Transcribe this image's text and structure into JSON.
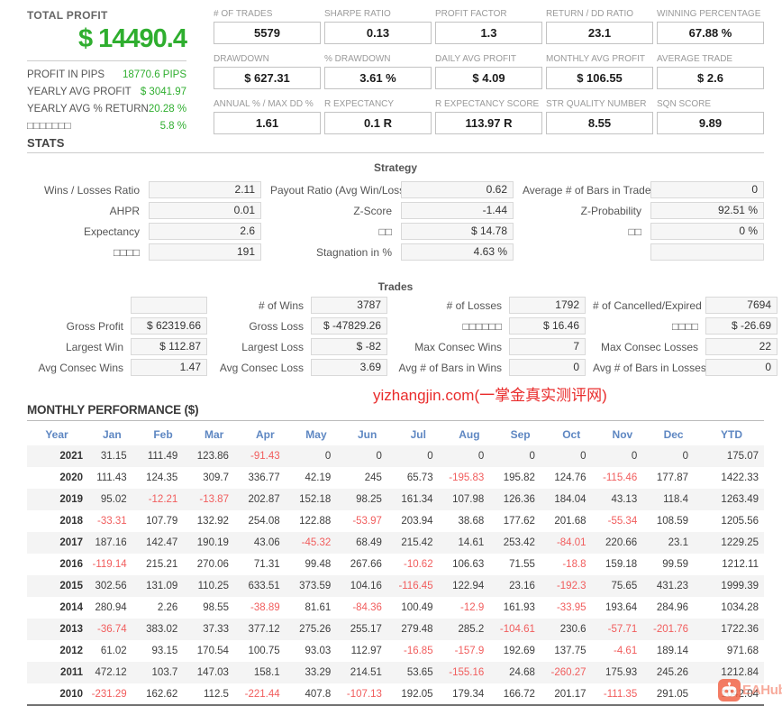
{
  "summary": {
    "total_profit_label": "TOTAL PROFIT",
    "total_profit_value": "$ 14490.4",
    "rows": [
      {
        "label": "PROFIT IN PIPS",
        "value": "18770.6 PIPS"
      },
      {
        "label": "YEARLY AVG PROFIT",
        "value": "$ 3041.97"
      },
      {
        "label": "YEARLY AVG % RETURN",
        "value": "20.28 %"
      },
      {
        "label": "□□□□□□□",
        "value": "5.8 %"
      }
    ]
  },
  "metrics": [
    [
      {
        "label": "# OF TRADES",
        "value": "5579"
      },
      {
        "label": "SHARPE RATIO",
        "value": "0.13"
      },
      {
        "label": "PROFIT FACTOR",
        "value": "1.3"
      },
      {
        "label": "RETURN / DD RATIO",
        "value": "23.1"
      },
      {
        "label": "WINNING PERCENTAGE",
        "value": "67.88 %"
      }
    ],
    [
      {
        "label": "DRAWDOWN",
        "value": "$ 627.31"
      },
      {
        "label": "% DRAWDOWN",
        "value": "3.61 %"
      },
      {
        "label": "DAILY AVG PROFIT",
        "value": "$ 4.09"
      },
      {
        "label": "MONTHLY AVG PROFIT",
        "value": "$ 106.55"
      },
      {
        "label": "AVERAGE TRADE",
        "value": "$ 2.6"
      }
    ],
    [
      {
        "label": "ANNUAL % / MAX DD %",
        "value": "1.61"
      },
      {
        "label": "R EXPECTANCY",
        "value": "0.1 R"
      },
      {
        "label": "R EXPECTANCY SCORE",
        "value": "113.97 R"
      },
      {
        "label": "STR QUALITY NUMBER",
        "value": "8.55"
      },
      {
        "label": "SQN SCORE",
        "value": "9.89"
      }
    ]
  ],
  "stats": {
    "title": "STATS",
    "strategy": {
      "title": "Strategy",
      "rows": [
        [
          {
            "label": "Wins / Losses Ratio",
            "value": "2.11"
          },
          {
            "label": "Payout Ratio (Avg Win/Loss)",
            "value": "0.62"
          },
          {
            "label": "Average # of Bars in Trade",
            "value": "0"
          }
        ],
        [
          {
            "label": "AHPR",
            "value": "0.01"
          },
          {
            "label": "Z-Score",
            "value": "-1.44"
          },
          {
            "label": "Z-Probability",
            "value": "92.51 %"
          }
        ],
        [
          {
            "label": "Expectancy",
            "value": "2.6"
          },
          {
            "label": "□□",
            "value": "$ 14.78"
          },
          {
            "label": "□□",
            "value": "0 %"
          }
        ],
        [
          {
            "label": "□□□□",
            "value": "191"
          },
          {
            "label": "Stagnation in %",
            "value": "4.63 %"
          },
          {
            "label": "",
            "value": ""
          }
        ]
      ]
    },
    "trades": {
      "title": "Trades",
      "rows": [
        [
          {
            "label": "",
            "value": ""
          },
          {
            "label": "# of Wins",
            "value": "3787"
          },
          {
            "label": "# of Losses",
            "value": "1792"
          },
          {
            "label": "# of Cancelled/Expired",
            "value": "7694"
          }
        ],
        [
          {
            "label": "Gross Profit",
            "value": "$ 62319.66"
          },
          {
            "label": "Gross Loss",
            "value": "$ -47829.26"
          },
          {
            "label": "□□□□□□",
            "value": "$ 16.46"
          },
          {
            "label": "□□□□",
            "value": "$ -26.69"
          }
        ],
        [
          {
            "label": "Largest Win",
            "value": "$ 112.87"
          },
          {
            "label": "Largest Loss",
            "value": "$ -82"
          },
          {
            "label": "Max Consec Wins",
            "value": "7"
          },
          {
            "label": "Max Consec Losses",
            "value": "22"
          }
        ],
        [
          {
            "label": "Avg Consec Wins",
            "value": "1.47"
          },
          {
            "label": "Avg Consec Loss",
            "value": "3.69"
          },
          {
            "label": "Avg # of Bars in Wins",
            "value": "0"
          },
          {
            "label": "Avg # of Bars in Losses",
            "value": "0"
          }
        ]
      ]
    }
  },
  "watermark": {
    "text": "yizhangjin.com(一掌金真实测评网)"
  },
  "monthly": {
    "title": "MONTHLY PERFORMANCE ($)",
    "headers": [
      "Year",
      "Jan",
      "Feb",
      "Mar",
      "Apr",
      "May",
      "Jun",
      "Jul",
      "Aug",
      "Sep",
      "Oct",
      "Nov",
      "Dec",
      "YTD"
    ],
    "rows": [
      {
        "year": "2021",
        "values": [
          "31.15",
          "111.49",
          "123.86",
          "-91.43",
          "0",
          "0",
          "0",
          "0",
          "0",
          "0",
          "0",
          "0",
          "175.07"
        ]
      },
      {
        "year": "2020",
        "values": [
          "111.43",
          "124.35",
          "309.7",
          "336.77",
          "42.19",
          "245",
          "65.73",
          "-195.83",
          "195.82",
          "124.76",
          "-115.46",
          "177.87",
          "1422.33"
        ]
      },
      {
        "year": "2019",
        "values": [
          "95.02",
          "-12.21",
          "-13.87",
          "202.87",
          "152.18",
          "98.25",
          "161.34",
          "107.98",
          "126.36",
          "184.04",
          "43.13",
          "118.4",
          "1263.49"
        ]
      },
      {
        "year": "2018",
        "values": [
          "-33.31",
          "107.79",
          "132.92",
          "254.08",
          "122.88",
          "-53.97",
          "203.94",
          "38.68",
          "177.62",
          "201.68",
          "-55.34",
          "108.59",
          "1205.56"
        ]
      },
      {
        "year": "2017",
        "values": [
          "187.16",
          "142.47",
          "190.19",
          "43.06",
          "-45.32",
          "68.49",
          "215.42",
          "14.61",
          "253.42",
          "-84.01",
          "220.66",
          "23.1",
          "1229.25"
        ]
      },
      {
        "year": "2016",
        "values": [
          "-119.14",
          "215.21",
          "270.06",
          "71.31",
          "99.48",
          "267.66",
          "-10.62",
          "106.63",
          "71.55",
          "-18.8",
          "159.18",
          "99.59",
          "1212.11"
        ]
      },
      {
        "year": "2015",
        "values": [
          "302.56",
          "131.09",
          "110.25",
          "633.51",
          "373.59",
          "104.16",
          "-116.45",
          "122.94",
          "23.16",
          "-192.3",
          "75.65",
          "431.23",
          "1999.39"
        ]
      },
      {
        "year": "2014",
        "values": [
          "280.94",
          "2.26",
          "98.55",
          "-38.89",
          "81.61",
          "-84.36",
          "100.49",
          "-12.9",
          "161.93",
          "-33.95",
          "193.64",
          "284.96",
          "1034.28"
        ]
      },
      {
        "year": "2013",
        "values": [
          "-36.74",
          "383.02",
          "37.33",
          "377.12",
          "275.26",
          "255.17",
          "279.48",
          "285.2",
          "-104.61",
          "230.6",
          "-57.71",
          "-201.76",
          "1722.36"
        ]
      },
      {
        "year": "2012",
        "values": [
          "61.02",
          "93.15",
          "170.54",
          "100.75",
          "93.03",
          "112.97",
          "-16.85",
          "-157.9",
          "192.69",
          "137.75",
          "-4.61",
          "189.14",
          "971.68"
        ]
      },
      {
        "year": "2011",
        "values": [
          "472.12",
          "103.7",
          "147.03",
          "158.1",
          "33.29",
          "214.51",
          "53.65",
          "-155.16",
          "24.68",
          "-260.27",
          "175.93",
          "245.26",
          "1212.84"
        ]
      },
      {
        "year": "2010",
        "values": [
          "-231.29",
          "162.62",
          "112.5",
          "-221.44",
          "407.8",
          "-107.13",
          "192.05",
          "179.34",
          "166.72",
          "201.17",
          "-111.35",
          "291.05",
          "1042.04"
        ]
      }
    ]
  },
  "logo": {
    "text": "EAHub"
  },
  "colors": {
    "profit_green": "#2fae2f",
    "negative_red": "#f15d5d",
    "header_blue": "#5e87c2",
    "watermark_red": "#e92c2c",
    "logo_orange": "#f2664a"
  }
}
